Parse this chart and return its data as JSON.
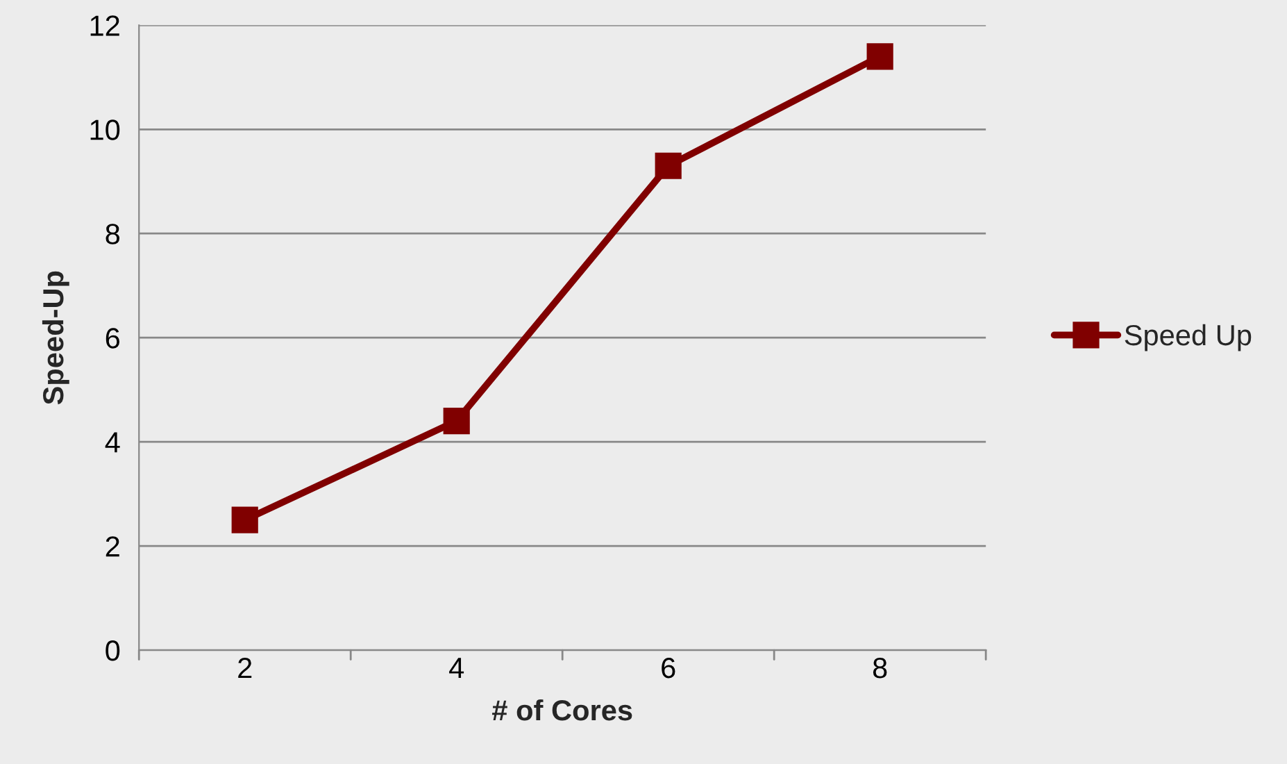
{
  "chart_data": {
    "type": "line",
    "xlabel": "# of Cores",
    "ylabel": "Speed-Up",
    "categories": [
      "2",
      "4",
      "6",
      "8"
    ],
    "series": [
      {
        "name": "Speed Up",
        "color": "#800000",
        "values": [
          2.5,
          4.4,
          9.3,
          11.4
        ]
      }
    ],
    "ylim": [
      0,
      12
    ],
    "yticks": [
      0,
      2,
      4,
      6,
      8,
      10,
      12
    ],
    "grid": "y",
    "legend": "right",
    "marker": "square",
    "line_style": "solid"
  }
}
